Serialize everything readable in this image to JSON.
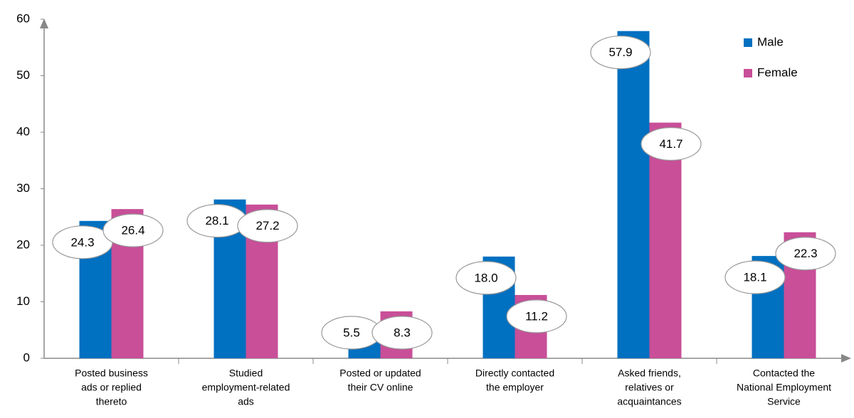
{
  "chart_data": {
    "type": "bar",
    "categories": [
      [
        "Posted business",
        "ads or replied",
        "thereto"
      ],
      [
        "Studied",
        "employment-related",
        "ads"
      ],
      [
        "Posted or updated",
        "their CV online"
      ],
      [
        "Directly contacted",
        "the employer"
      ],
      [
        "Asked friends,",
        "relatives or",
        "acquaintances"
      ],
      [
        "Contacted the",
        "National Employment",
        "Service"
      ]
    ],
    "series": [
      {
        "name": "Male",
        "color": "#0070c0",
        "values": [
          24.3,
          28.1,
          5.5,
          18.0,
          57.9,
          18.1
        ],
        "value_labels": [
          "24.3",
          "28.1",
          "5.5",
          "18.0",
          "57.9",
          "18.1"
        ]
      },
      {
        "name": "Female",
        "color": "#c84f98",
        "values": [
          26.4,
          27.2,
          8.3,
          11.2,
          41.7,
          22.3
        ],
        "value_labels": [
          "26.4",
          "27.2",
          "8.3",
          "11.2",
          "41.7",
          "22.3"
        ]
      }
    ],
    "ylim": [
      0,
      60
    ],
    "yticks": [
      0,
      10,
      20,
      30,
      40,
      50,
      60
    ],
    "legend": "upper right"
  }
}
